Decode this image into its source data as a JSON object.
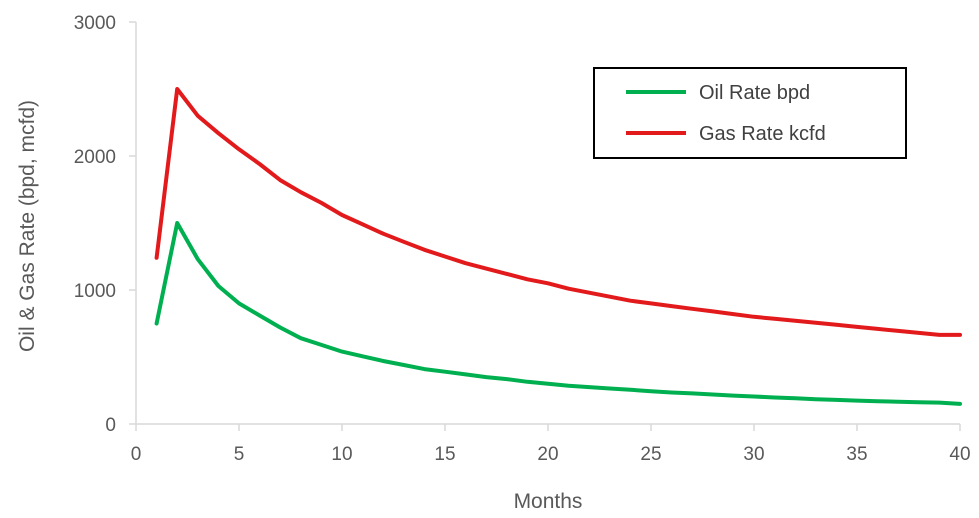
{
  "chart_data": {
    "type": "line",
    "title": "",
    "xlabel": "Months",
    "ylabel": "Oil & Gas Rate (bpd, mcfd)",
    "xlim": [
      0,
      40
    ],
    "ylim": [
      0,
      3000
    ],
    "x_ticks": [
      "0",
      "5",
      "10",
      "15",
      "20",
      "25",
      "30",
      "35",
      "40"
    ],
    "y_ticks": [
      "0",
      "1000",
      "2000",
      "3000"
    ],
    "grid": false,
    "legend_position": "top-right",
    "x": [
      1,
      2,
      3,
      4,
      5,
      6,
      7,
      8,
      9,
      10,
      11,
      12,
      13,
      14,
      15,
      16,
      17,
      18,
      19,
      20,
      21,
      22,
      23,
      24,
      25,
      26,
      27,
      28,
      29,
      30,
      31,
      32,
      33,
      34,
      35,
      36,
      37,
      38,
      39,
      40
    ],
    "series": [
      {
        "name": "Oil Rate bpd",
        "color": "#00b050",
        "values": [
          750,
          1500,
          1230,
          1030,
          900,
          810,
          720,
          640,
          590,
          540,
          505,
          470,
          440,
          410,
          390,
          370,
          350,
          335,
          315,
          300,
          285,
          275,
          265,
          255,
          245,
          235,
          228,
          220,
          212,
          205,
          198,
          192,
          185,
          180,
          175,
          170,
          166,
          162,
          160,
          150
        ]
      },
      {
        "name": "Gas Rate kcfd",
        "color": "#e31a1c",
        "values": [
          1240,
          2500,
          2300,
          2170,
          2050,
          1940,
          1820,
          1730,
          1650,
          1560,
          1490,
          1420,
          1360,
          1300,
          1250,
          1200,
          1160,
          1120,
          1080,
          1050,
          1010,
          980,
          950,
          920,
          900,
          880,
          860,
          840,
          820,
          800,
          785,
          770,
          755,
          740,
          725,
          710,
          695,
          680,
          665,
          665
        ]
      }
    ]
  }
}
